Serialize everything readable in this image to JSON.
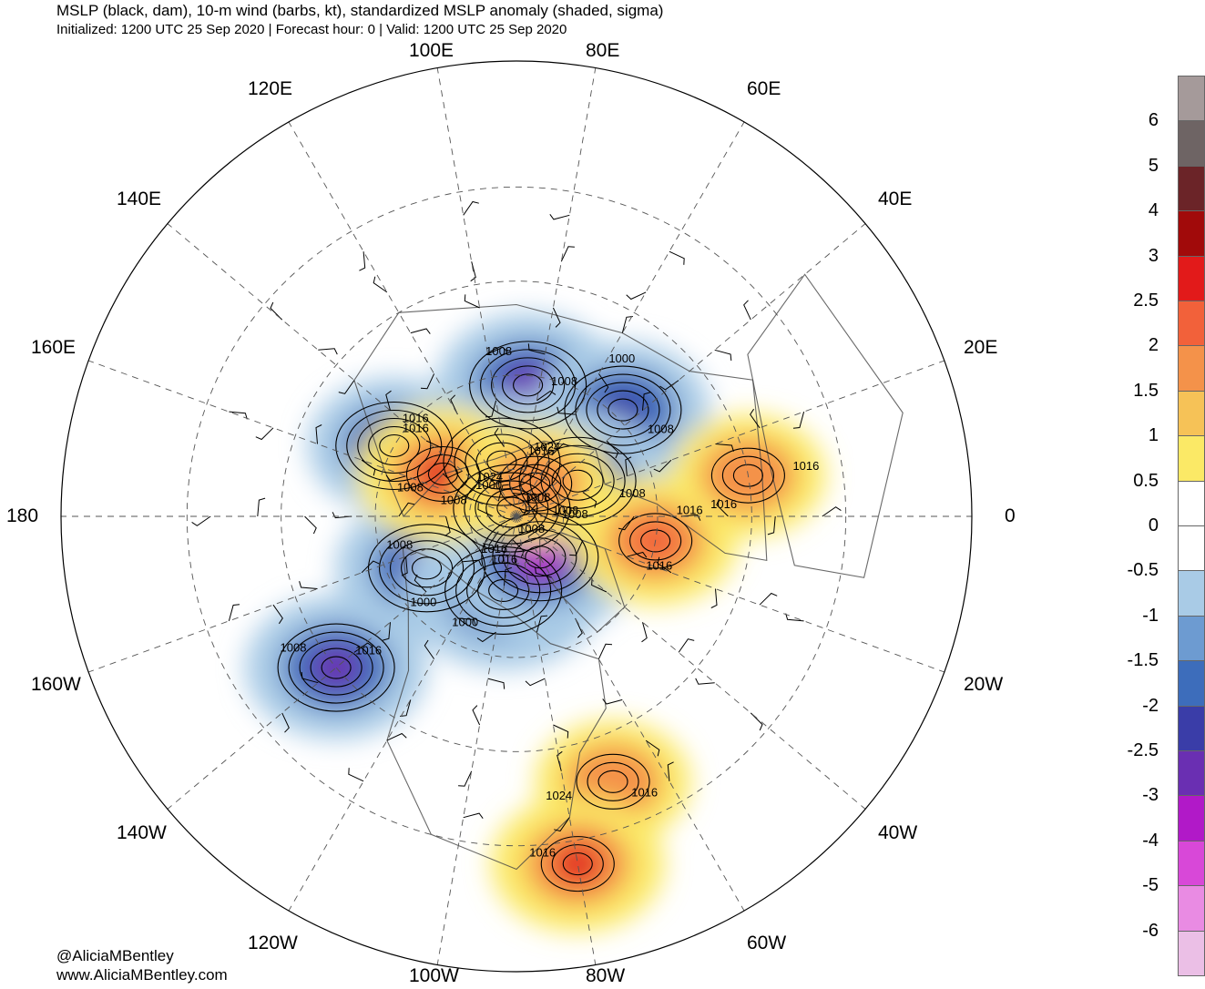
{
  "header": {
    "title": "MSLP (black, dam), 10-m wind (barbs, kt), standardized MSLP anomaly (shaded, sigma)",
    "subtitle": "Initialized: 1200 UTC 25 Sep 2020 | Forecast hour: 0 | Valid: 1200 UTC 25 Sep 2020"
  },
  "longitude_labels": [
    {
      "text": "100E",
      "lon": 100
    },
    {
      "text": "80E",
      "lon": 80
    },
    {
      "text": "120E",
      "lon": 120
    },
    {
      "text": "60E",
      "lon": 60
    },
    {
      "text": "140E",
      "lon": 140
    },
    {
      "text": "40E",
      "lon": 40
    },
    {
      "text": "160E",
      "lon": 160
    },
    {
      "text": "20E",
      "lon": 20
    },
    {
      "text": "180",
      "lon": 180
    },
    {
      "text": "0",
      "lon": 0
    },
    {
      "text": "160W",
      "lon": -160
    },
    {
      "text": "20W",
      "lon": -20
    },
    {
      "text": "140W",
      "lon": -140
    },
    {
      "text": "40W",
      "lon": -40
    },
    {
      "text": "120W",
      "lon": -120
    },
    {
      "text": "60W",
      "lon": -60
    },
    {
      "text": "100W",
      "lon": -100
    },
    {
      "text": "80W",
      "lon": -80
    }
  ],
  "isobar_labels": [
    "1008",
    "1008",
    "1008",
    "1000",
    "1008",
    "1008",
    "1008",
    "1016",
    "1008",
    "1016",
    "1024",
    "1008",
    "1016",
    "1016",
    "1024",
    "1016",
    "1008",
    "1000",
    "1016",
    "1024",
    "1008",
    "1008",
    "1000",
    "1000",
    "1016",
    "1008",
    "1016",
    "1016",
    "1016",
    "1016",
    "1016"
  ],
  "anomaly_features": [
    {
      "kind": "negative",
      "level": -3,
      "lon": 85,
      "lat": 62
    },
    {
      "kind": "negative",
      "level": -2.5,
      "lon": 45,
      "lat": 58
    },
    {
      "kind": "negative",
      "level": -2.5,
      "lon": 150,
      "lat": 60
    },
    {
      "kind": "negative",
      "level": -2.5,
      "lon": 105,
      "lat": 78
    },
    {
      "kind": "negative",
      "level": -3,
      "lon": 30,
      "lat": 75
    },
    {
      "kind": "negative",
      "level": -2.5,
      "lon": 120,
      "lat": 88
    },
    {
      "kind": "negative",
      "level": -3,
      "lon": -150,
      "lat": 68
    },
    {
      "kind": "negative",
      "level": -4,
      "lon": -100,
      "lat": 74
    },
    {
      "kind": "negative",
      "level": -4,
      "lon": -60,
      "lat": 80
    },
    {
      "kind": "negative",
      "level": -3,
      "lon": -140,
      "lat": 40
    },
    {
      "kind": "positive",
      "level": 2.5,
      "lon": 150,
      "lat": 72
    },
    {
      "kind": "positive",
      "level": 1.5,
      "lon": 60,
      "lat": 82
    },
    {
      "kind": "positive",
      "level": 2,
      "lon": -10,
      "lat": 60
    },
    {
      "kind": "positive",
      "level": 1.5,
      "lon": 10,
      "lat": 40
    },
    {
      "kind": "positive",
      "level": 1.5,
      "lon": -70,
      "lat": 30
    },
    {
      "kind": "positive",
      "level": 2.5,
      "lon": -80,
      "lat": 15
    }
  ],
  "colorbar": {
    "levels": [
      {
        "label": "6",
        "color": "#a59a9a"
      },
      {
        "label": "5",
        "color": "#6e6464"
      },
      {
        "label": "4",
        "color": "#6b2428"
      },
      {
        "label": "3",
        "color": "#a10a0a"
      },
      {
        "label": "2.5",
        "color": "#e21a1a"
      },
      {
        "label": "2",
        "color": "#f2613a"
      },
      {
        "label": "1.5",
        "color": "#f4924a"
      },
      {
        "label": "1",
        "color": "#f6c257"
      },
      {
        "label": "0.5",
        "color": "#fbe966"
      },
      {
        "label": "0",
        "color": "#ffffff"
      },
      {
        "label": "-0.5",
        "color": "#ffffff"
      },
      {
        "label": "-1",
        "color": "#a9cbe6"
      },
      {
        "label": "-1.5",
        "color": "#6d9bd1"
      },
      {
        "label": "-2",
        "color": "#3d6dbb"
      },
      {
        "label": "-2.5",
        "color": "#3a3da8"
      },
      {
        "label": "-3",
        "color": "#6a2fb2"
      },
      {
        "label": "-4",
        "color": "#b119c8"
      },
      {
        "label": "-5",
        "color": "#d848d8"
      },
      {
        "label": "-6",
        "color": "#e98be3"
      },
      {
        "label": "",
        "color": "#ebbfe6"
      }
    ]
  },
  "credits": {
    "handle": "@AliciaMBentley",
    "website": "www.AliciaMBentley.com"
  }
}
